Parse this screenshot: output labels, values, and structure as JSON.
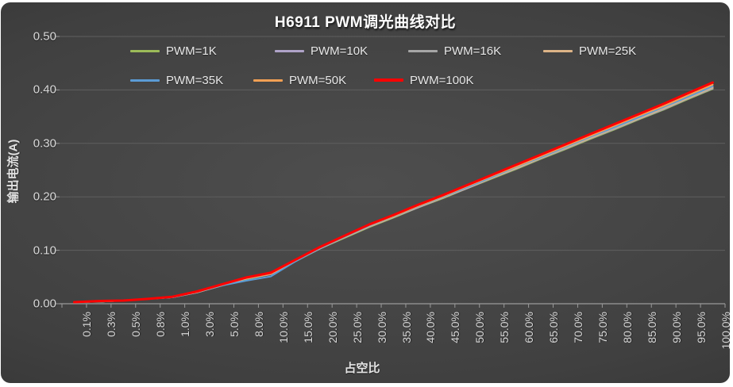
{
  "title": "H6911 PWM调光曲线对比",
  "axes": {
    "x_title": "占空比",
    "y_title": "输出电流(A)",
    "y_tick_labels": [
      "0.00",
      "0.10",
      "0.20",
      "0.30",
      "0.40",
      "0.50"
    ]
  },
  "style": {
    "grid_color": "#5f5f5f",
    "axis_line_color": "#9a9a9a",
    "tick_color": "#9a9a9a",
    "label_color": "#d9d9d9",
    "title_color": "#ffffff"
  },
  "chart_data": {
    "type": "line",
    "title": "H6911 PWM调光曲线对比",
    "xlabel": "占空比",
    "ylabel": "输出电流(A)",
    "ylim": [
      0,
      0.5
    ],
    "y_tick_step": 0.1,
    "grid": true,
    "legend_position": "top",
    "categories": [
      "0.1%",
      "0.3%",
      "0.5%",
      "0.8%",
      "1.0%",
      "3.0%",
      "5.0%",
      "8.0%",
      "10.0%",
      "15.0%",
      "20.0%",
      "25.0%",
      "30.0%",
      "35.0%",
      "40.0%",
      "45.0%",
      "50.0%",
      "55.0%",
      "60.0%",
      "65.0%",
      "70.0%",
      "75.0%",
      "80.0%",
      "85.0%",
      "90.0%",
      "95.0%",
      "100.0%"
    ],
    "series": [
      {
        "name": "PWM=1K",
        "color": "#9CBB59",
        "line_width": 2,
        "values": [
          0.003,
          0.004,
          0.006,
          0.009,
          0.012,
          0.021,
          0.034,
          0.046,
          0.055,
          0.079,
          0.103,
          0.123,
          0.143,
          0.161,
          0.18,
          0.197,
          0.216,
          0.234,
          0.252,
          0.271,
          0.289,
          0.308,
          0.326,
          0.345,
          0.363,
          0.383,
          0.402
        ]
      },
      {
        "name": "PWM=10K",
        "color": "#AFA3C8",
        "line_width": 2,
        "values": [
          0.003,
          0.004,
          0.006,
          0.009,
          0.012,
          0.021,
          0.034,
          0.047,
          0.055,
          0.08,
          0.103,
          0.124,
          0.144,
          0.162,
          0.18,
          0.198,
          0.216,
          0.235,
          0.253,
          0.272,
          0.29,
          0.309,
          0.327,
          0.346,
          0.364,
          0.384,
          0.403
        ]
      },
      {
        "name": "PWM=16K",
        "color": "#A6A6A6",
        "line_width": 2,
        "values": [
          0.003,
          0.004,
          0.006,
          0.009,
          0.012,
          0.021,
          0.034,
          0.047,
          0.056,
          0.08,
          0.103,
          0.124,
          0.144,
          0.162,
          0.181,
          0.198,
          0.217,
          0.235,
          0.254,
          0.272,
          0.291,
          0.309,
          0.328,
          0.346,
          0.365,
          0.384,
          0.404
        ]
      },
      {
        "name": "PWM=25K",
        "color": "#DDB487",
        "line_width": 2,
        "values": [
          0.003,
          0.004,
          0.006,
          0.009,
          0.012,
          0.022,
          0.034,
          0.047,
          0.056,
          0.08,
          0.104,
          0.124,
          0.145,
          0.162,
          0.181,
          0.199,
          0.217,
          0.236,
          0.254,
          0.273,
          0.292,
          0.31,
          0.329,
          0.347,
          0.366,
          0.385,
          0.405
        ]
      },
      {
        "name": "PWM=35K",
        "color": "#5B9BD5",
        "line_width": 2,
        "values": [
          0.003,
          0.004,
          0.006,
          0.009,
          0.012,
          0.022,
          0.034,
          0.043,
          0.051,
          0.079,
          0.104,
          0.125,
          0.146,
          0.163,
          0.182,
          0.2,
          0.218,
          0.237,
          0.256,
          0.274,
          0.293,
          0.312,
          0.33,
          0.349,
          0.368,
          0.387,
          0.407
        ]
      },
      {
        "name": "PWM=50K",
        "color": "#F2A054",
        "line_width": 2,
        "values": [
          0.003,
          0.004,
          0.006,
          0.009,
          0.013,
          0.022,
          0.035,
          0.048,
          0.056,
          0.081,
          0.105,
          0.126,
          0.147,
          0.164,
          0.183,
          0.201,
          0.22,
          0.239,
          0.257,
          0.276,
          0.295,
          0.314,
          0.333,
          0.352,
          0.37,
          0.39,
          0.41
        ]
      },
      {
        "name": "PWM=100K",
        "color": "#FF0000",
        "line_width": 3,
        "values": [
          0.003,
          0.005,
          0.006,
          0.009,
          0.013,
          0.023,
          0.036,
          0.049,
          0.058,
          0.082,
          0.106,
          0.127,
          0.148,
          0.166,
          0.185,
          0.203,
          0.222,
          0.241,
          0.26,
          0.279,
          0.298,
          0.317,
          0.336,
          0.355,
          0.374,
          0.394,
          0.414
        ]
      }
    ]
  }
}
